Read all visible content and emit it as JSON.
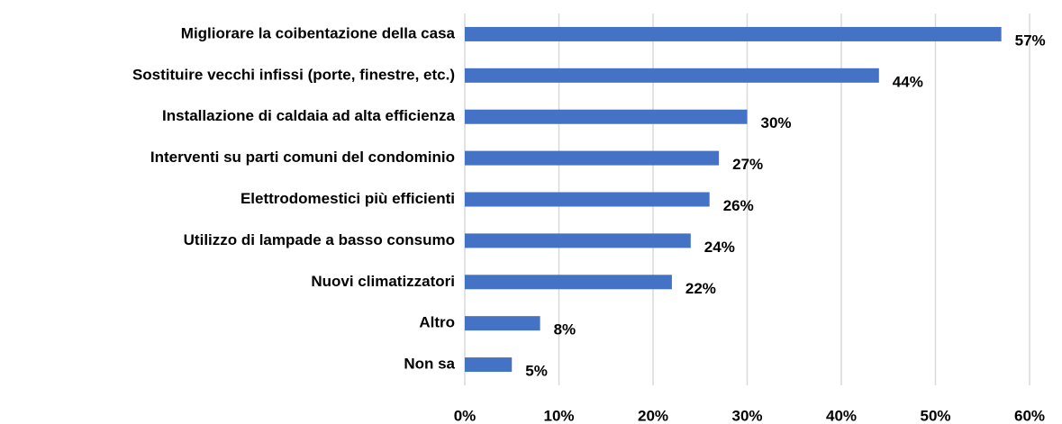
{
  "chart_data": {
    "type": "bar",
    "orientation": "horizontal",
    "categories": [
      "Migliorare la coibentazione della casa",
      "Sostituire vecchi infissi (porte, finestre, etc.)",
      "Installazione di caldaia ad alta efficienza",
      "Interventi su parti comuni del condominio",
      "Elettrodomestici più efficienti",
      "Utilizzo di lampade a basso consumo",
      "Nuovi climatizzatori",
      "Altro",
      "Non sa"
    ],
    "values": [
      57,
      44,
      30,
      27,
      26,
      24,
      22,
      8,
      5
    ],
    "value_labels": [
      "57%",
      "44%",
      "30%",
      "27%",
      "26%",
      "24%",
      "22%",
      "8%",
      "5%"
    ],
    "color": "#4472c4",
    "xlim": [
      0,
      60
    ],
    "xticks": [
      {
        "value": 0,
        "label": "0%"
      },
      {
        "value": 10,
        "label": "10%"
      },
      {
        "value": 20,
        "label": "20%"
      },
      {
        "value": 30,
        "label": "30%"
      },
      {
        "value": 40,
        "label": "40%"
      },
      {
        "value": 50,
        "label": "50%"
      },
      {
        "value": 60,
        "label": "60%"
      }
    ],
    "grid": true
  }
}
